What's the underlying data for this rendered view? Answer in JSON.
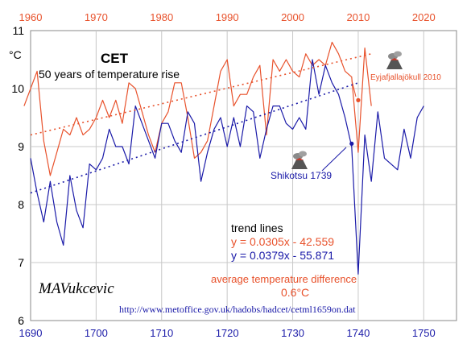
{
  "chart_data": {
    "type": "line",
    "title": "CET",
    "subtitle": "50 years of temperature rise",
    "ylabel": "°C",
    "ylim": [
      6,
      11
    ],
    "yticks": [
      6,
      7,
      8,
      9,
      10,
      11
    ],
    "x_bottom": {
      "range": [
        1690,
        1755
      ],
      "ticks": [
        1690,
        1700,
        1710,
        1720,
        1730,
        1740,
        1750
      ]
    },
    "x_top": {
      "range": [
        1960,
        2025
      ],
      "ticks": [
        1960,
        1970,
        1980,
        1990,
        2000,
        2010,
        2020
      ]
    },
    "grid": true,
    "series": [
      {
        "axis": "top",
        "color": "#e8522c",
        "x": [
          1959,
          1960,
          1961,
          1962,
          1963,
          1964,
          1965,
          1966,
          1967,
          1968,
          1969,
          1970,
          1971,
          1972,
          1973,
          1974,
          1975,
          1976,
          1977,
          1978,
          1979,
          1980,
          1981,
          1982,
          1983,
          1984,
          1985,
          1986,
          1987,
          1988,
          1989,
          1990,
          1991,
          1992,
          1993,
          1994,
          1995,
          1996,
          1997,
          1998,
          1999,
          2000,
          2001,
          2002,
          2003,
          2004,
          2005,
          2006,
          2007,
          2008,
          2009,
          2010,
          2011,
          2012
        ],
        "values": [
          9.7,
          10.0,
          10.3,
          9.1,
          8.5,
          8.9,
          9.3,
          9.2,
          9.5,
          9.2,
          9.3,
          9.5,
          9.8,
          9.5,
          9.8,
          9.4,
          10.1,
          10.0,
          9.6,
          9.2,
          8.9,
          9.4,
          9.6,
          10.1,
          10.1,
          9.5,
          8.8,
          8.9,
          9.1,
          9.7,
          10.3,
          10.5,
          9.7,
          9.9,
          9.9,
          10.2,
          10.4,
          9.2,
          10.5,
          10.3,
          10.5,
          10.3,
          10.2,
          10.6,
          10.4,
          10.5,
          10.4,
          10.8,
          10.6,
          10.3,
          10.2,
          8.9,
          10.7,
          9.7
        ]
      },
      {
        "axis": "bottom",
        "color": "#1a1aa8",
        "x": [
          1690,
          1691,
          1692,
          1693,
          1694,
          1695,
          1696,
          1697,
          1698,
          1699,
          1700,
          1701,
          1702,
          1703,
          1704,
          1705,
          1706,
          1707,
          1708,
          1709,
          1710,
          1711,
          1712,
          1713,
          1714,
          1715,
          1716,
          1717,
          1718,
          1719,
          1720,
          1721,
          1722,
          1723,
          1724,
          1725,
          1726,
          1727,
          1728,
          1729,
          1730,
          1731,
          1732,
          1733,
          1734,
          1735,
          1736,
          1737,
          1738,
          1739,
          1740,
          1741,
          1742,
          1743,
          1744,
          1745,
          1746,
          1747,
          1748,
          1749,
          1750
        ],
        "values": [
          8.8,
          8.2,
          7.7,
          8.4,
          7.7,
          7.3,
          8.5,
          7.9,
          7.6,
          8.7,
          8.6,
          8.8,
          9.3,
          9.0,
          9.0,
          8.7,
          9.7,
          9.4,
          9.1,
          8.8,
          9.4,
          9.4,
          9.1,
          8.9,
          9.6,
          9.4,
          8.4,
          8.9,
          9.3,
          9.5,
          9.0,
          9.5,
          9.0,
          9.7,
          9.6,
          8.8,
          9.3,
          9.7,
          9.7,
          9.4,
          9.3,
          9.5,
          9.3,
          10.5,
          9.9,
          10.4,
          10.1,
          9.9,
          9.5,
          9.0,
          6.8,
          9.2,
          8.4,
          9.6,
          8.8,
          8.7,
          8.6,
          9.3,
          8.8,
          9.5,
          9.7
        ]
      }
    ],
    "trend_lines": [
      {
        "color": "#e8522c",
        "axis": "top",
        "x": [
          1960,
          2012
        ],
        "values": [
          9.2,
          10.6
        ],
        "equation": "y = 0.0305x - 42.559"
      },
      {
        "color": "#1a1aa8",
        "axis": "bottom",
        "x": [
          1690,
          1740
        ],
        "values": [
          8.2,
          10.1
        ],
        "equation": "y = 0.0379x - 55.871"
      }
    ],
    "annotations": [
      {
        "text": "Eyjafjallajökull 2010",
        "color": "#e8522c",
        "axis": "top",
        "x": 2010,
        "y": 9.8
      },
      {
        "text": "Shikotsu 1739",
        "color": "#1a1aa8",
        "axis": "bottom",
        "x": 1739,
        "y": 9.05
      }
    ],
    "legend": {
      "heading": "trend lines",
      "avg_diff_label": "average temperature difference",
      "avg_diff_value": "0.6°C"
    },
    "author": "MAVukcevic",
    "source_url": "http://www.metoffice.gov.uk/hadobs/hadcet/cetml1659on.dat"
  }
}
